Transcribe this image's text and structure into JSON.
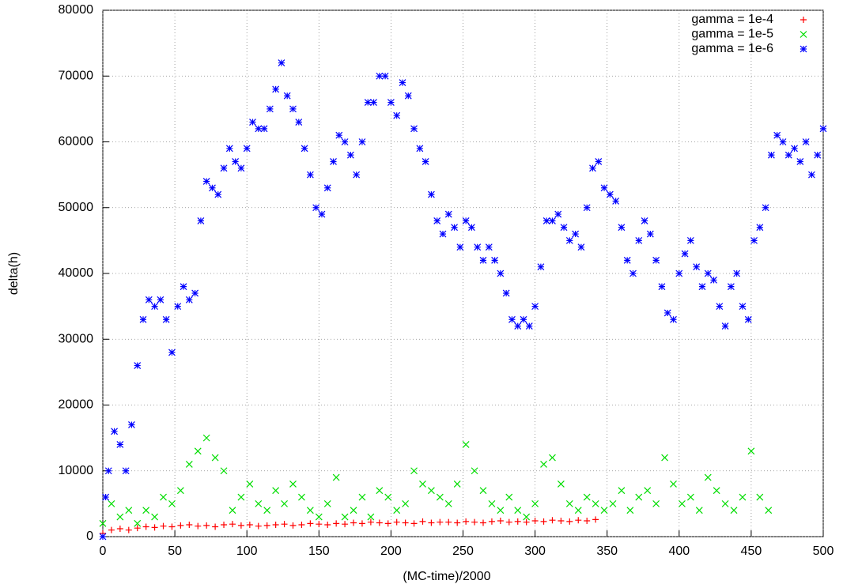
{
  "chart_data": {
    "type": "scatter",
    "xlabel": "(MC-time)/2000",
    "ylabel": "delta(h)",
    "xlim": [
      0,
      500
    ],
    "ylim": [
      0,
      80000
    ],
    "xticks": [
      0,
      50,
      100,
      150,
      200,
      250,
      300,
      350,
      400,
      450,
      500
    ],
    "yticks": [
      0,
      10000,
      20000,
      30000,
      40000,
      50000,
      60000,
      70000,
      80000
    ],
    "grid": true,
    "legend": "top-right",
    "series": [
      {
        "name": "gamma = 1e-4",
        "color": "#ff0000",
        "marker": "plus",
        "x": [
          0,
          6,
          12,
          18,
          24,
          30,
          36,
          42,
          48,
          54,
          60,
          66,
          72,
          78,
          84,
          90,
          96,
          102,
          108,
          114,
          120,
          126,
          132,
          138,
          144,
          150,
          156,
          162,
          168,
          174,
          180,
          186,
          192,
          198,
          204,
          210,
          216,
          222,
          228,
          234,
          240,
          246,
          252,
          258,
          264,
          270,
          276,
          282,
          288,
          294,
          300,
          306,
          312,
          318,
          324,
          330,
          336,
          342
        ],
        "values": [
          500,
          1000,
          1200,
          1000,
          1300,
          1500,
          1400,
          1600,
          1500,
          1700,
          1800,
          1600,
          1700,
          1500,
          1800,
          1900,
          1700,
          1800,
          1600,
          1700,
          1800,
          1900,
          1700,
          1800,
          2000,
          1900,
          1800,
          2000,
          1900,
          2100,
          2000,
          2200,
          2100,
          2000,
          2200,
          2100,
          2000,
          2300,
          2100,
          2200,
          2200,
          2100,
          2300,
          2200,
          2100,
          2300,
          2400,
          2200,
          2300,
          2200,
          2400,
          2300,
          2500,
          2400,
          2300,
          2500,
          2400,
          2600
        ]
      },
      {
        "name": "gamma = 1e-5",
        "color": "#00dd00",
        "marker": "cross",
        "x": [
          0,
          6,
          12,
          18,
          24,
          30,
          36,
          42,
          48,
          54,
          60,
          66,
          72,
          78,
          84,
          90,
          96,
          102,
          108,
          114,
          120,
          126,
          132,
          138,
          144,
          150,
          156,
          162,
          168,
          174,
          180,
          186,
          192,
          198,
          204,
          210,
          216,
          222,
          228,
          234,
          240,
          246,
          252,
          258,
          264,
          270,
          276,
          282,
          288,
          294,
          300,
          306,
          312,
          318,
          324,
          330,
          336,
          342,
          348,
          354,
          360,
          366,
          372,
          378,
          384,
          390,
          396,
          402,
          408,
          414,
          420,
          426,
          432,
          438,
          444,
          450,
          456,
          462
        ],
        "values": [
          2000,
          5000,
          3000,
          4000,
          2000,
          4000,
          3000,
          6000,
          5000,
          7000,
          11000,
          13000,
          15000,
          12000,
          10000,
          4000,
          6000,
          8000,
          5000,
          4000,
          7000,
          5000,
          8000,
          6000,
          4000,
          3000,
          5000,
          9000,
          3000,
          4000,
          6000,
          3000,
          7000,
          6000,
          4000,
          5000,
          10000,
          8000,
          7000,
          6000,
          5000,
          8000,
          14000,
          10000,
          7000,
          5000,
          4000,
          6000,
          4000,
          3000,
          5000,
          11000,
          12000,
          8000,
          5000,
          4000,
          6000,
          5000,
          4000,
          5000,
          7000,
          4000,
          6000,
          7000,
          5000,
          12000,
          8000,
          5000,
          6000,
          4000,
          9000,
          7000,
          5000,
          4000,
          6000,
          13000,
          6000,
          4000
        ]
      },
      {
        "name": "gamma = 1e-6",
        "color": "#0000ff",
        "marker": "star",
        "x": [
          0,
          2,
          4,
          8,
          12,
          16,
          20,
          24,
          28,
          32,
          36,
          40,
          44,
          48,
          52,
          56,
          60,
          64,
          68,
          72,
          76,
          80,
          84,
          88,
          92,
          96,
          100,
          104,
          108,
          112,
          116,
          120,
          124,
          128,
          132,
          136,
          140,
          144,
          148,
          152,
          156,
          160,
          164,
          168,
          172,
          176,
          180,
          184,
          188,
          192,
          196,
          200,
          204,
          208,
          212,
          216,
          220,
          224,
          228,
          232,
          236,
          240,
          244,
          248,
          252,
          256,
          260,
          264,
          268,
          272,
          276,
          280,
          284,
          288,
          292,
          296,
          300,
          304,
          308,
          312,
          316,
          320,
          324,
          328,
          332,
          336,
          340,
          344,
          348,
          352,
          356,
          360,
          364,
          368,
          372,
          376,
          380,
          384,
          388,
          392,
          396,
          400,
          404,
          408,
          412,
          416,
          420,
          424,
          428,
          432,
          436,
          440,
          444,
          448,
          452,
          456,
          460,
          464,
          468,
          472,
          476,
          480,
          484,
          488,
          492,
          496,
          500
        ],
        "values": [
          0,
          6000,
          10000,
          16000,
          14000,
          10000,
          17000,
          26000,
          33000,
          36000,
          35000,
          36000,
          33000,
          28000,
          35000,
          38000,
          36000,
          37000,
          48000,
          54000,
          53000,
          52000,
          56000,
          59000,
          57000,
          56000,
          59000,
          63000,
          62000,
          62000,
          65000,
          68000,
          72000,
          67000,
          65000,
          63000,
          59000,
          55000,
          50000,
          49000,
          53000,
          57000,
          61000,
          60000,
          58000,
          55000,
          60000,
          66000,
          66000,
          70000,
          70000,
          66000,
          64000,
          69000,
          67000,
          62000,
          59000,
          57000,
          52000,
          48000,
          46000,
          49000,
          47000,
          44000,
          48000,
          47000,
          44000,
          42000,
          44000,
          42000,
          40000,
          37000,
          33000,
          32000,
          33000,
          32000,
          35000,
          41000,
          48000,
          48000,
          49000,
          47000,
          45000,
          46000,
          44000,
          50000,
          56000,
          57000,
          53000,
          52000,
          51000,
          47000,
          42000,
          40000,
          45000,
          48000,
          46000,
          42000,
          38000,
          34000,
          33000,
          40000,
          43000,
          45000,
          41000,
          38000,
          40000,
          39000,
          35000,
          32000,
          38000,
          40000,
          35000,
          33000,
          45000,
          47000,
          50000,
          58000,
          61000,
          60000,
          58000,
          59000,
          57000,
          60000,
          55000,
          58000,
          62000
        ]
      }
    ]
  }
}
